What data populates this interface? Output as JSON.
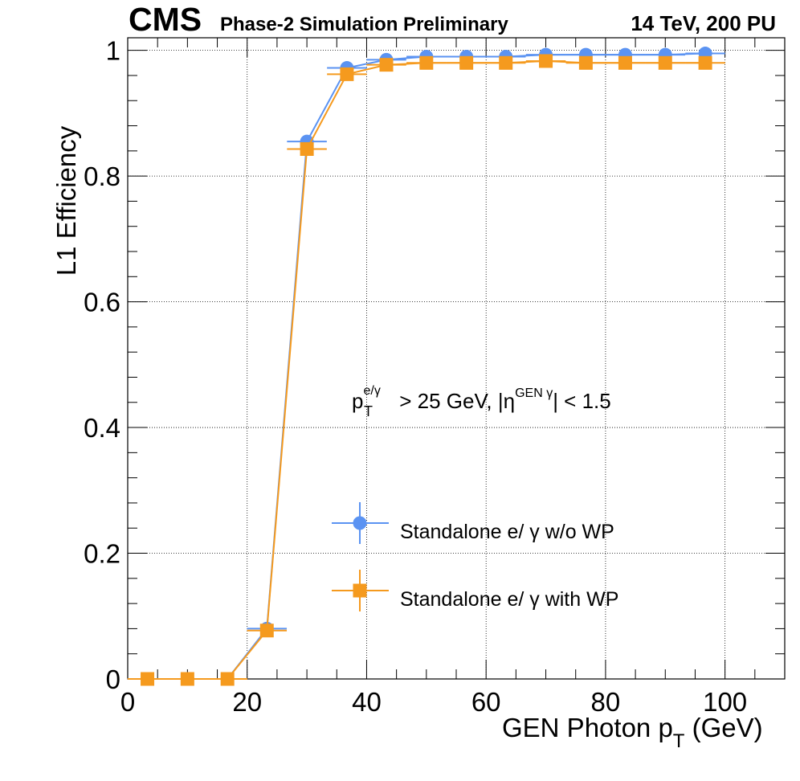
{
  "header": {
    "experiment": "CMS",
    "status": "Phase-2 Simulation Preliminary",
    "conditions": "14 TeV, 200 PU"
  },
  "annotation": {
    "p": "p",
    "sup1": "e/γ",
    "sub1": "T",
    "mid": " > 25 GeV, |η",
    "sup2": "GEN γ",
    "tail": "| < 1.5"
  },
  "chart_data": {
    "type": "scatter",
    "xlabel": "GEN Photon p",
    "xlabel_sub": "T",
    "xlabel_unit": " (GeV)",
    "ylabel": "L1 Efficiency",
    "xlim": [
      0,
      110
    ],
    "ylim": [
      0,
      1.02
    ],
    "xticks": [
      0,
      20,
      40,
      60,
      80,
      100
    ],
    "xtick_labels": [
      "0",
      "20",
      "40",
      "60",
      "80",
      "100"
    ],
    "yticks": [
      0,
      0.2,
      0.4,
      0.6,
      0.8,
      1
    ],
    "ytick_labels": [
      "0",
      "0.2",
      "0.4",
      "0.6",
      "0.8",
      "1"
    ],
    "grid": true,
    "legend_position": "lower-right",
    "x": [
      3.3,
      10,
      16.7,
      23.3,
      30,
      36.7,
      43.3,
      50,
      56.7,
      63.3,
      70,
      76.7,
      83.3,
      90,
      96.7
    ],
    "x_halfwidth": 3.33,
    "series": [
      {
        "name": "Standalone e/ γ w/o WP",
        "color": "#5b93f2",
        "marker": "circle",
        "values": [
          0,
          0,
          0,
          0.08,
          0.855,
          0.972,
          0.985,
          0.99,
          0.99,
          0.99,
          0.993,
          0.993,
          0.993,
          0.993,
          0.995
        ]
      },
      {
        "name": "Standalone e/ γ with WP",
        "color": "#f59a1e",
        "marker": "square",
        "values": [
          0,
          0,
          0,
          0.077,
          0.843,
          0.962,
          0.977,
          0.98,
          0.98,
          0.98,
          0.983,
          0.98,
          0.98,
          0.98,
          0.98
        ]
      }
    ]
  }
}
